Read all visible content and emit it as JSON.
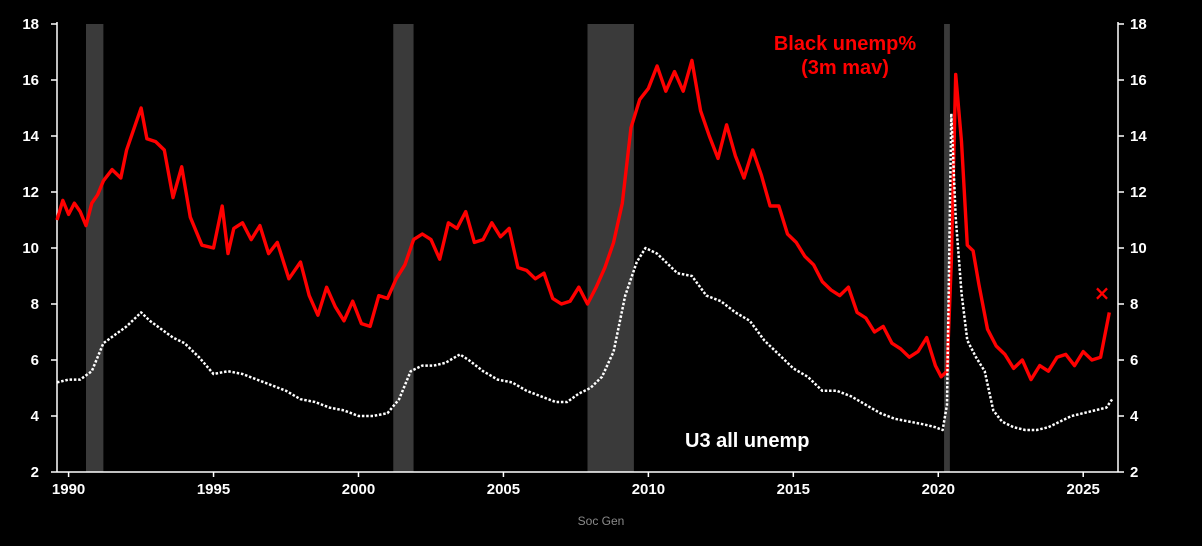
{
  "chart_data": {
    "type": "line",
    "title": "",
    "xlabel": "",
    "ylabel": "",
    "xlim": [
      1989.6,
      2026.2
    ],
    "ylim": [
      2,
      18
    ],
    "y_ticks": [
      2,
      4,
      6,
      8,
      10,
      12,
      14,
      16,
      18
    ],
    "x_ticks": [
      1990,
      1995,
      2000,
      2005,
      2010,
      2015,
      2020,
      2025
    ],
    "x_tick_labels": [
      "1990",
      "1995",
      "2000",
      "2005",
      "2010",
      "2015",
      "2020",
      "2025"
    ],
    "dual_axis": true,
    "grid": false,
    "recession_bands": [
      [
        1990.6,
        1991.2
      ],
      [
        2001.2,
        2001.9
      ],
      [
        2007.9,
        2009.5
      ],
      [
        2020.2,
        2020.4
      ]
    ],
    "series": [
      {
        "name": "Black unemp% (3m mav)",
        "color": "#ff0000",
        "style": "solid",
        "x": [
          1989.6,
          1989.8,
          1990.0,
          1990.2,
          1990.4,
          1990.6,
          1990.8,
          1991.0,
          1991.2,
          1991.5,
          1991.8,
          1992.0,
          1992.3,
          1992.5,
          1992.7,
          1993.0,
          1993.3,
          1993.6,
          1993.9,
          1994.2,
          1994.6,
          1995.0,
          1995.3,
          1995.5,
          1995.7,
          1996.0,
          1996.3,
          1996.6,
          1996.9,
          1997.2,
          1997.6,
          1998.0,
          1998.3,
          1998.6,
          1998.9,
          1999.2,
          1999.5,
          1999.8,
          2000.1,
          2000.4,
          2000.7,
          2001.0,
          2001.3,
          2001.6,
          2001.9,
          2002.2,
          2002.5,
          2002.8,
          2003.1,
          2003.4,
          2003.7,
          2004.0,
          2004.3,
          2004.6,
          2004.9,
          2005.2,
          2005.5,
          2005.8,
          2006.1,
          2006.4,
          2006.7,
          2007.0,
          2007.3,
          2007.6,
          2007.9,
          2008.2,
          2008.5,
          2008.8,
          2009.1,
          2009.4,
          2009.7,
          2010.0,
          2010.3,
          2010.6,
          2010.9,
          2011.2,
          2011.5,
          2011.8,
          2012.1,
          2012.4,
          2012.7,
          2013.0,
          2013.3,
          2013.6,
          2013.9,
          2014.2,
          2014.5,
          2014.8,
          2015.1,
          2015.4,
          2015.7,
          2016.0,
          2016.3,
          2016.6,
          2016.9,
          2017.2,
          2017.5,
          2017.8,
          2018.1,
          2018.4,
          2018.7,
          2019.0,
          2019.3,
          2019.6,
          2019.9,
          2020.1,
          2020.3,
          2020.45,
          2020.6,
          2020.8,
          2021.0,
          2021.2,
          2021.4,
          2021.7,
          2022.0,
          2022.3,
          2022.6,
          2022.9,
          2023.2,
          2023.5,
          2023.8,
          2024.1,
          2024.4,
          2024.7,
          2025.0,
          2025.3,
          2025.6,
          2025.9
        ],
        "values": [
          11.0,
          11.7,
          11.2,
          11.6,
          11.3,
          10.8,
          11.6,
          11.9,
          12.4,
          12.8,
          12.5,
          13.5,
          14.4,
          15.0,
          13.9,
          13.8,
          13.5,
          11.8,
          12.9,
          11.1,
          10.1,
          10.0,
          11.5,
          9.8,
          10.7,
          10.9,
          10.3,
          10.8,
          9.8,
          10.2,
          8.9,
          9.5,
          8.3,
          7.6,
          8.6,
          7.9,
          7.4,
          8.1,
          7.3,
          7.2,
          8.3,
          8.2,
          8.9,
          9.4,
          10.3,
          10.5,
          10.3,
          9.6,
          10.9,
          10.7,
          11.3,
          10.2,
          10.3,
          10.9,
          10.4,
          10.7,
          9.3,
          9.2,
          8.9,
          9.1,
          8.2,
          8.0,
          8.1,
          8.6,
          8.0,
          8.6,
          9.3,
          10.2,
          11.6,
          14.3,
          15.3,
          15.7,
          16.5,
          15.6,
          16.3,
          15.6,
          16.7,
          14.9,
          14.0,
          13.2,
          14.4,
          13.3,
          12.5,
          13.5,
          12.6,
          11.5,
          11.5,
          10.5,
          10.2,
          9.7,
          9.4,
          8.8,
          8.5,
          8.3,
          8.6,
          7.7,
          7.5,
          7.0,
          7.2,
          6.6,
          6.4,
          6.1,
          6.3,
          6.8,
          5.8,
          5.4,
          5.6,
          9.5,
          16.2,
          13.8,
          10.1,
          9.9,
          8.7,
          7.1,
          6.5,
          6.2,
          5.7,
          6.0,
          5.3,
          5.8,
          5.6,
          6.1,
          6.2,
          5.8,
          6.3,
          6.0,
          6.1,
          7.7
        ]
      },
      {
        "name": "U3 all unemp",
        "color": "#ffffff",
        "style": "dotted",
        "x": [
          1989.6,
          1990.0,
          1990.4,
          1990.8,
          1991.2,
          1991.6,
          1992.0,
          1992.5,
          1992.8,
          1993.2,
          1993.6,
          1994.0,
          1994.5,
          1995.0,
          1995.5,
          1996.0,
          1996.5,
          1997.0,
          1997.5,
          1998.0,
          1998.5,
          1999.0,
          1999.5,
          2000.0,
          2000.5,
          2001.0,
          2001.4,
          2001.8,
          2002.2,
          2002.6,
          2003.0,
          2003.5,
          2003.8,
          2004.3,
          2004.8,
          2005.3,
          2005.8,
          2006.3,
          2006.8,
          2007.2,
          2007.6,
          2008.0,
          2008.4,
          2008.8,
          2009.2,
          2009.6,
          2009.9,
          2010.3,
          2010.7,
          2011.0,
          2011.5,
          2012.0,
          2012.5,
          2013.0,
          2013.5,
          2014.0,
          2014.5,
          2015.0,
          2015.5,
          2016.0,
          2016.5,
          2017.0,
          2017.5,
          2018.0,
          2018.5,
          2019.0,
          2019.5,
          2019.9,
          2020.15,
          2020.3,
          2020.45,
          2020.6,
          2020.8,
          2021.0,
          2021.3,
          2021.6,
          2021.9,
          2022.2,
          2022.6,
          2023.0,
          2023.4,
          2023.8,
          2024.2,
          2024.6,
          2025.0,
          2025.4,
          2025.8,
          2026.0
        ],
        "values": [
          5.2,
          5.3,
          5.3,
          5.6,
          6.6,
          6.9,
          7.2,
          7.7,
          7.4,
          7.1,
          6.8,
          6.6,
          6.1,
          5.5,
          5.6,
          5.5,
          5.3,
          5.1,
          4.9,
          4.6,
          4.5,
          4.3,
          4.2,
          4.0,
          4.0,
          4.1,
          4.6,
          5.6,
          5.8,
          5.8,
          5.9,
          6.2,
          6.0,
          5.6,
          5.3,
          5.2,
          4.9,
          4.7,
          4.5,
          4.5,
          4.8,
          5.0,
          5.4,
          6.3,
          8.3,
          9.5,
          10.0,
          9.8,
          9.4,
          9.1,
          9.0,
          8.3,
          8.1,
          7.7,
          7.4,
          6.7,
          6.2,
          5.7,
          5.4,
          4.9,
          4.9,
          4.7,
          4.4,
          4.1,
          3.9,
          3.8,
          3.7,
          3.6,
          3.5,
          4.4,
          14.8,
          11.1,
          8.4,
          6.7,
          6.1,
          5.6,
          4.2,
          3.8,
          3.6,
          3.5,
          3.5,
          3.6,
          3.8,
          4.0,
          4.1,
          4.2,
          4.3,
          4.6
        ]
      }
    ],
    "annotations": [
      {
        "text": "Black unemp%",
        "color": "#ff0000"
      },
      {
        "text": "(3m mav)",
        "color": "#ff0000"
      },
      {
        "text": "U3 all unemp",
        "color": "#ffffff"
      },
      {
        "text": "×",
        "color": "#ff0000"
      }
    ],
    "source": "Soc Gen"
  }
}
